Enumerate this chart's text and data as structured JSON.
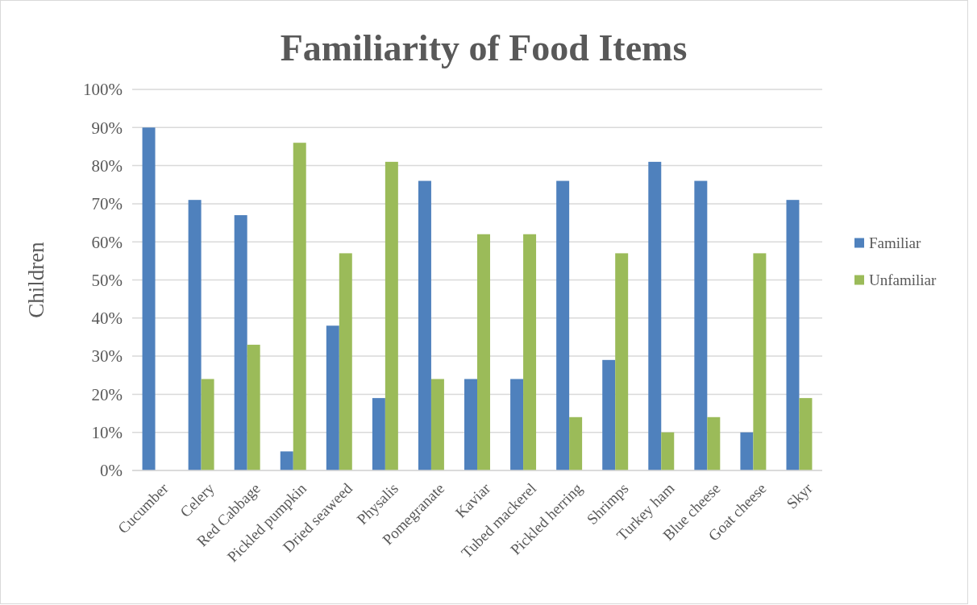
{
  "chart_data": {
    "type": "bar",
    "title": "Familiarity of Food Items",
    "ylabel": "Children",
    "categories": [
      "Cucumber",
      "Celery",
      "Red Cabbage",
      "Pickled pumpkin",
      "Dried seaweed",
      "Physalis",
      "Pomegranate",
      "Kaviar",
      "Tubed mackerel",
      "Pickled herring",
      "Shrimps",
      "Turkey ham",
      "Blue cheese",
      "Goat cheese",
      "Skyr"
    ],
    "series": [
      {
        "name": "Familiar",
        "color": "#4f81bd",
        "values": [
          90,
          71,
          67,
          5,
          38,
          19,
          76,
          24,
          24,
          76,
          29,
          81,
          76,
          10,
          71
        ]
      },
      {
        "name": "Unfamiliar",
        "color": "#9bbb59",
        "values": [
          0,
          24,
          33,
          86,
          57,
          81,
          24,
          62,
          62,
          14,
          57,
          10,
          14,
          57,
          19
        ]
      }
    ],
    "ylim": [
      0,
      100
    ],
    "yticks": [
      {
        "value": 0,
        "label": "0%"
      },
      {
        "value": 10,
        "label": "10%"
      },
      {
        "value": 20,
        "label": "20%"
      },
      {
        "value": 30,
        "label": "30%"
      },
      {
        "value": 40,
        "label": "40%"
      },
      {
        "value": 50,
        "label": "50%"
      },
      {
        "value": 60,
        "label": "60%"
      },
      {
        "value": 70,
        "label": "70%"
      },
      {
        "value": 80,
        "label": "80%"
      },
      {
        "value": 90,
        "label": "90%"
      },
      {
        "value": 100,
        "label": "100%"
      }
    ],
    "grid": "y",
    "legend": "right"
  }
}
